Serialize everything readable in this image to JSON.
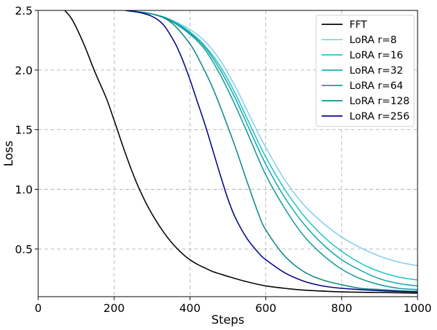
{
  "chart_data": {
    "type": "line",
    "title": "",
    "xlabel": "Steps",
    "ylabel": "Loss",
    "xlim": [
      0,
      1000
    ],
    "ylim": [
      0.1,
      2.5
    ],
    "xticks": [
      0,
      200,
      400,
      600,
      800,
      1000
    ],
    "yticks": [
      0.5,
      1.0,
      1.5,
      2.0,
      2.5
    ],
    "xtick_labels": [
      "0",
      "200",
      "400",
      "600",
      "800",
      "1000"
    ],
    "ytick_labels": [
      "0.5",
      "1.0",
      "1.5",
      "2.0",
      "2.5"
    ],
    "grid": true,
    "legend_position": "top-right",
    "series": [
      {
        "name": "FFT",
        "color": "#000000",
        "x": [
          70,
          90,
          120,
          150,
          180,
          200,
          230,
          260,
          290,
          320,
          350,
          380,
          400,
          420,
          440,
          460,
          480,
          500,
          550,
          600,
          650,
          700,
          800,
          900,
          1000
        ],
        "y": [
          2.5,
          2.42,
          2.22,
          1.98,
          1.76,
          1.58,
          1.3,
          1.05,
          0.85,
          0.69,
          0.56,
          0.46,
          0.41,
          0.37,
          0.34,
          0.31,
          0.29,
          0.27,
          0.225,
          0.19,
          0.17,
          0.155,
          0.14,
          0.135,
          0.13
        ]
      },
      {
        "name": "LoRA r=8",
        "color": "#87ceeb",
        "x": [
          230,
          300,
          350,
          400,
          440,
          480,
          520,
          560,
          600,
          650,
          700,
          750,
          800,
          850,
          900,
          950,
          1000
        ],
        "y": [
          2.5,
          2.47,
          2.42,
          2.34,
          2.24,
          2.08,
          1.86,
          1.6,
          1.35,
          1.08,
          0.87,
          0.72,
          0.6,
          0.51,
          0.44,
          0.39,
          0.36
        ]
      },
      {
        "name": "LoRA r=16",
        "color": "#20c5c5",
        "x": [
          230,
          300,
          350,
          400,
          440,
          480,
          520,
          560,
          600,
          650,
          700,
          750,
          800,
          850,
          900,
          950,
          1000
        ],
        "y": [
          2.5,
          2.47,
          2.42,
          2.32,
          2.2,
          2.03,
          1.8,
          1.53,
          1.27,
          1.0,
          0.78,
          0.61,
          0.48,
          0.38,
          0.31,
          0.265,
          0.24
        ]
      },
      {
        "name": "LoRA r=32",
        "color": "#12aab0",
        "x": [
          230,
          300,
          350,
          400,
          440,
          480,
          520,
          560,
          600,
          650,
          700,
          750,
          800,
          850,
          900,
          950,
          1000
        ],
        "y": [
          2.5,
          2.47,
          2.42,
          2.31,
          2.19,
          2.0,
          1.76,
          1.48,
          1.21,
          0.93,
          0.71,
          0.54,
          0.41,
          0.32,
          0.25,
          0.21,
          0.19
        ]
      },
      {
        "name": "LoRA r=64",
        "color": "#129a98",
        "x": [
          230,
          300,
          350,
          400,
          440,
          480,
          520,
          560,
          600,
          650,
          700,
          750,
          800,
          850,
          900,
          950,
          1000
        ],
        "y": [
          2.5,
          2.47,
          2.41,
          2.3,
          2.17,
          1.96,
          1.7,
          1.41,
          1.12,
          0.84,
          0.61,
          0.45,
          0.33,
          0.25,
          0.2,
          0.17,
          0.16
        ]
      },
      {
        "name": "LoRA r=128",
        "color": "#0e8a86",
        "x": [
          230,
          300,
          350,
          400,
          430,
          460,
          490,
          520,
          550,
          580,
          600,
          650,
          700,
          750,
          800,
          850,
          900,
          950,
          1000
        ],
        "y": [
          2.5,
          2.47,
          2.4,
          2.22,
          2.05,
          1.85,
          1.61,
          1.35,
          1.07,
          0.8,
          0.66,
          0.44,
          0.31,
          0.24,
          0.2,
          0.17,
          0.16,
          0.15,
          0.145
        ]
      },
      {
        "name": "LoRA r=256",
        "color": "#00008b",
        "x": [
          230,
          270,
          300,
          330,
          360,
          380,
          400,
          420,
          440,
          460,
          480,
          500,
          520,
          550,
          580,
          600,
          650,
          700,
          750,
          800,
          900,
          1000
        ],
        "y": [
          2.5,
          2.48,
          2.45,
          2.38,
          2.23,
          2.09,
          1.92,
          1.73,
          1.54,
          1.33,
          1.12,
          0.92,
          0.76,
          0.59,
          0.47,
          0.41,
          0.3,
          0.23,
          0.19,
          0.17,
          0.15,
          0.14
        ]
      }
    ]
  }
}
